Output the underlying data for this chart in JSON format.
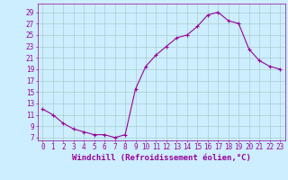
{
  "x": [
    0,
    1,
    2,
    3,
    4,
    5,
    6,
    7,
    8,
    9,
    10,
    11,
    12,
    13,
    14,
    15,
    16,
    17,
    18,
    19,
    20,
    21,
    22,
    23
  ],
  "y": [
    12.0,
    11.0,
    9.5,
    8.5,
    8.0,
    7.5,
    7.5,
    7.0,
    7.5,
    15.5,
    19.5,
    21.5,
    23.0,
    24.5,
    25.0,
    26.5,
    28.5,
    29.0,
    27.5,
    27.0,
    22.5,
    20.5,
    19.5,
    19.0
  ],
  "line_color": "#990099",
  "marker": "+",
  "bg_color": "#cceeff",
  "grid_color": "#aacccc",
  "yticks": [
    7,
    9,
    11,
    13,
    15,
    17,
    19,
    21,
    23,
    25,
    27,
    29
  ],
  "xticks": [
    0,
    1,
    2,
    3,
    4,
    5,
    6,
    7,
    8,
    9,
    10,
    11,
    12,
    13,
    14,
    15,
    16,
    17,
    18,
    19,
    20,
    21,
    22,
    23
  ],
  "xlabel": "Windchill (Refroidissement éolien,°C)",
  "ylim": [
    6.5,
    30.5
  ],
  "xlim": [
    -0.5,
    23.5
  ],
  "tick_fontsize": 5.5,
  "label_fontsize": 6.5
}
